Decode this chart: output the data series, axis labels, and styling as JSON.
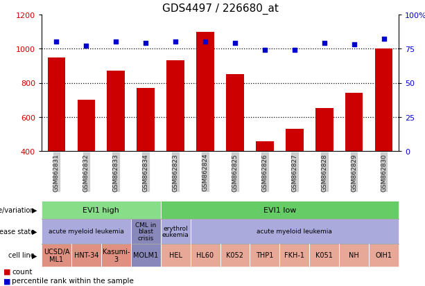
{
  "title": "GDS4497 / 226680_at",
  "samples": [
    "GSM862831",
    "GSM862832",
    "GSM862833",
    "GSM862834",
    "GSM862823",
    "GSM862824",
    "GSM862825",
    "GSM862826",
    "GSM862827",
    "GSM862828",
    "GSM862829",
    "GSM862830"
  ],
  "counts": [
    950,
    700,
    870,
    770,
    930,
    1100,
    850,
    455,
    530,
    650,
    740,
    1000
  ],
  "percentiles": [
    80,
    77,
    80,
    79,
    80,
    80,
    79,
    74,
    74,
    79,
    78,
    82
  ],
  "ylim_left": [
    400,
    1200
  ],
  "ylim_right": [
    0,
    100
  ],
  "yticks_left": [
    400,
    600,
    800,
    1000,
    1200
  ],
  "yticks_right": [
    0,
    25,
    50,
    75,
    100
  ],
  "bar_color": "#cc0000",
  "dot_color": "#0000cc",
  "hline_values": [
    600,
    800,
    1000
  ],
  "bg_plot": "#ffffff",
  "bg_fig": "#ffffff",
  "row_genotype_label": "genotype/variation",
  "row_disease_label": "disease state",
  "row_cell_label": "cell line",
  "genotype_groups": [
    {
      "label": "EVI1 high",
      "start": 0,
      "end": 4,
      "color": "#88dd88"
    },
    {
      "label": "EVI1 low",
      "start": 4,
      "end": 12,
      "color": "#66cc66"
    }
  ],
  "disease_groups": [
    {
      "label": "acute myeloid leukemia",
      "start": 0,
      "end": 3,
      "color": "#aaaadd"
    },
    {
      "label": "CML in\nblast\ncrisis",
      "start": 3,
      "end": 4,
      "color": "#8888bb"
    },
    {
      "label": "erythrol\neukemia",
      "start": 4,
      "end": 5,
      "color": "#aaaadd"
    },
    {
      "label": "acute myeloid leukemia",
      "start": 5,
      "end": 12,
      "color": "#aaaadd"
    }
  ],
  "cell_groups": [
    {
      "label": "UCSD/A\nML1",
      "start": 0,
      "end": 1,
      "color": "#e09080"
    },
    {
      "label": "HNT-34",
      "start": 1,
      "end": 2,
      "color": "#e09080"
    },
    {
      "label": "Kasumi-\n3",
      "start": 2,
      "end": 3,
      "color": "#e09080"
    },
    {
      "label": "MOLM1",
      "start": 3,
      "end": 4,
      "color": "#8888bb"
    },
    {
      "label": "HEL",
      "start": 4,
      "end": 5,
      "color": "#e8a898"
    },
    {
      "label": "HL60",
      "start": 5,
      "end": 6,
      "color": "#e8a898"
    },
    {
      "label": "K052",
      "start": 6,
      "end": 7,
      "color": "#e8a898"
    },
    {
      "label": "THP1",
      "start": 7,
      "end": 8,
      "color": "#e8a898"
    },
    {
      "label": "FKH-1",
      "start": 8,
      "end": 9,
      "color": "#e8a898"
    },
    {
      "label": "K051",
      "start": 9,
      "end": 10,
      "color": "#e8a898"
    },
    {
      "label": "NH",
      "start": 10,
      "end": 11,
      "color": "#e8a898"
    },
    {
      "label": "OIH1",
      "start": 11,
      "end": 12,
      "color": "#e8a898"
    }
  ],
  "legend_count_color": "#cc0000",
  "legend_percentile_color": "#0000cc",
  "right_axis_label_color": "#0000cc",
  "left_axis_label_color": "#cc0000",
  "xtick_bg": "#cccccc"
}
